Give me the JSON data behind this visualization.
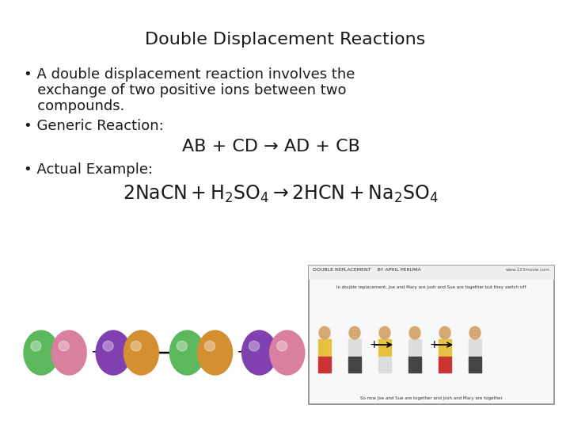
{
  "title": "Double Displacement Reactions",
  "title_fontsize": 16,
  "bullet1_line1": "• A double displacement reaction involves the",
  "bullet1_line2": "   exchange of two positive ions between two",
  "bullet1_line3": "   compounds.",
  "bullet2": "• Generic Reaction:",
  "generic_eq": "AB + CD → AD + CB",
  "bullet3": "• Actual Example:",
  "background_color": "#ffffff",
  "text_color": "#1a1a1a",
  "body_fontsize": 13,
  "eq_fontsize": 14,
  "chem_eq_fontsize": 15
}
